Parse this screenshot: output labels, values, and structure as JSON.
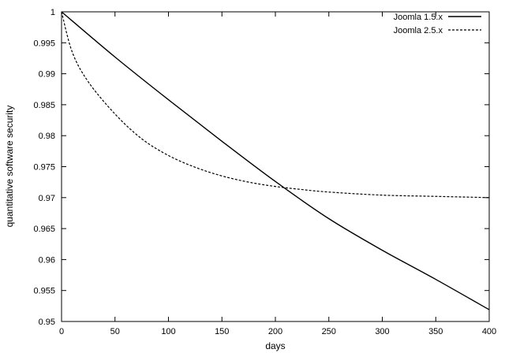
{
  "chart_data": {
    "type": "line",
    "xlabel": "days",
    "ylabel": "quantitative software security",
    "xlim": [
      0,
      400
    ],
    "ylim": [
      0.95,
      1.0
    ],
    "x_ticks": [
      "0",
      "50",
      "100",
      "150",
      "200",
      "250",
      "300",
      "350",
      "400"
    ],
    "y_ticks": [
      "0.95",
      "0.955",
      "0.96",
      "0.965",
      "0.97",
      "0.975",
      "0.98",
      "0.985",
      "0.99",
      "0.995",
      "1"
    ],
    "grid": false,
    "legend_position": "top-right",
    "series": [
      {
        "name": "Joomla 1.5.x",
        "style": "solid",
        "x": [
          0,
          50,
          100,
          150,
          200,
          250,
          300,
          350,
          400
        ],
        "y": [
          1.0,
          0.9927,
          0.9858,
          0.9791,
          0.9726,
          0.9666,
          0.9615,
          0.9568,
          0.9519
        ]
      },
      {
        "name": "Joomla 2.5.x",
        "style": "dashed",
        "x": [
          0,
          10,
          25,
          50,
          75,
          100,
          125,
          150,
          175,
          200,
          225,
          250,
          300,
          350,
          400
        ],
        "y": [
          1.0,
          0.9935,
          0.9887,
          0.9835,
          0.9795,
          0.9768,
          0.9749,
          0.9735,
          0.9725,
          0.9718,
          0.9713,
          0.9709,
          0.9704,
          0.9702,
          0.97
        ]
      }
    ]
  }
}
